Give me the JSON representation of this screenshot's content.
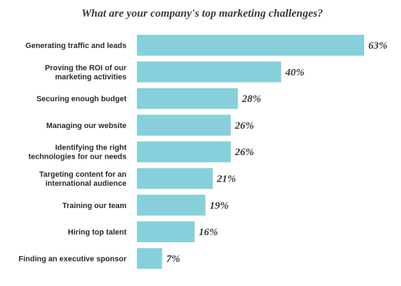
{
  "chart_data": {
    "type": "bar",
    "orientation": "horizontal",
    "title": "What are your company's top marketing challenges?",
    "categories": [
      [
        "Generating traffic and leads"
      ],
      [
        "Proving the ROI of our",
        "marketing activities"
      ],
      [
        "Securing enough budget"
      ],
      [
        "Managing our website"
      ],
      [
        "Identifying the right",
        "technologies for our needs"
      ],
      [
        "Targeting content for an",
        "international audience"
      ],
      [
        "Training our team"
      ],
      [
        "Hiring top talent"
      ],
      [
        "Finding an executive sponsor"
      ]
    ],
    "values": [
      63,
      40,
      28,
      26,
      26,
      21,
      19,
      16,
      7
    ],
    "value_labels": [
      "63%",
      "40%",
      "28%",
      "26%",
      "26%",
      "21%",
      "19%",
      "16%",
      "7%"
    ],
    "xlim": [
      0,
      63
    ],
    "grid": false,
    "bar_color": "#86d0db"
  }
}
